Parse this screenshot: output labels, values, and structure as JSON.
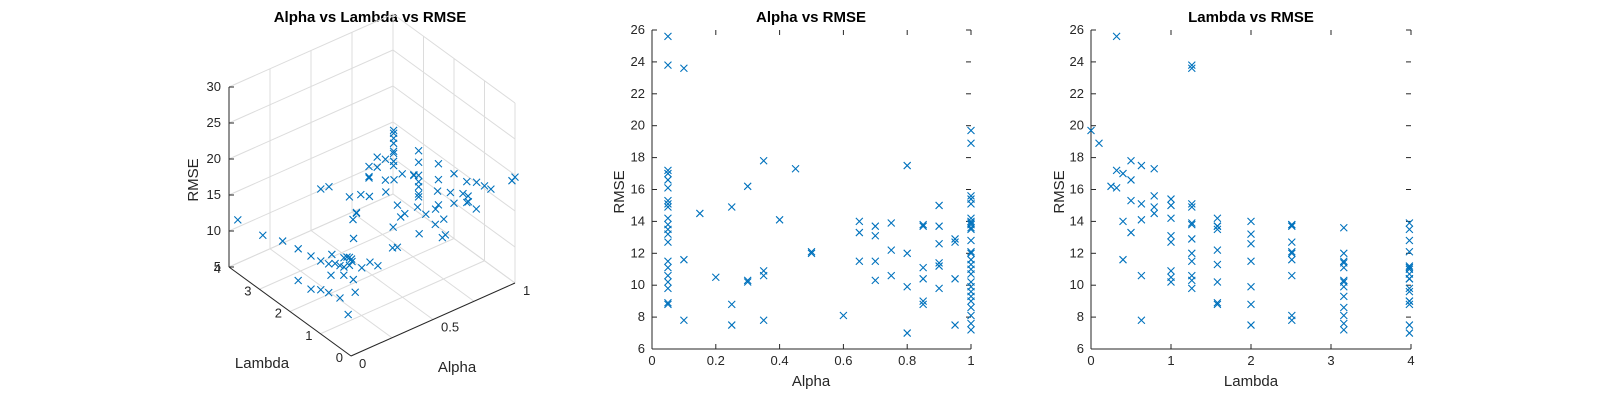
{
  "chart_data": [
    {
      "type": "scatter3d",
      "title": "Alpha vs Lambda vs RMSE",
      "xlabel": "Alpha",
      "ylabel": "Lambda",
      "zlabel": "RMSE",
      "xlim": [
        0,
        1
      ],
      "ylim": [
        0,
        4
      ],
      "zlim": [
        5,
        30
      ],
      "xticks": [
        "0",
        "0.5",
        "1"
      ],
      "yticks": [
        "0",
        "1",
        "2",
        "3",
        "4"
      ],
      "zticks": [
        "5",
        "10",
        "15",
        "20",
        "25",
        "30"
      ],
      "marker": "x",
      "points_ref": "shared_points"
    },
    {
      "type": "scatter",
      "title": "Alpha vs RMSE",
      "xlabel": "Alpha",
      "ylabel": "RMSE",
      "xlim": [
        0,
        1
      ],
      "ylim": [
        6,
        26
      ],
      "xticks": [
        "0",
        "0.2",
        "0.4",
        "0.6",
        "0.8",
        "1"
      ],
      "yticks": [
        "6",
        "8",
        "10",
        "12",
        "14",
        "16",
        "18",
        "20",
        "22",
        "24",
        "26"
      ],
      "marker": "x",
      "points_ref": "shared_points"
    },
    {
      "type": "scatter",
      "title": "Lambda vs RMSE",
      "xlabel": "Lambda",
      "ylabel": "RMSE",
      "xlim": [
        0,
        4
      ],
      "ylim": [
        6,
        26
      ],
      "xticks": [
        "0",
        "1",
        "2",
        "3",
        "4"
      ],
      "yticks": [
        "6",
        "8",
        "10",
        "12",
        "14",
        "16",
        "18",
        "20",
        "22",
        "24",
        "26"
      ],
      "marker": "x",
      "points_ref": "shared_points"
    }
  ],
  "shared_points": {
    "columns": [
      "alpha",
      "lambda",
      "rmse"
    ],
    "rows": [
      [
        0.05,
        0.32,
        25.6
      ],
      [
        0.05,
        1.26,
        23.8
      ],
      [
        0.1,
        1.26,
        23.6
      ],
      [
        0.05,
        0.32,
        17.2
      ],
      [
        0.05,
        0.4,
        17.0
      ],
      [
        0.05,
        0.5,
        16.6
      ],
      [
        0.05,
        0.32,
        16.1
      ],
      [
        0.05,
        0.5,
        15.3
      ],
      [
        0.05,
        0.63,
        15.1
      ],
      [
        0.05,
        0.79,
        14.9
      ],
      [
        0.05,
        1.0,
        14.2
      ],
      [
        0.05,
        1.26,
        13.8
      ],
      [
        0.05,
        1.58,
        13.5
      ],
      [
        0.05,
        2.0,
        13.2
      ],
      [
        0.05,
        2.51,
        12.7
      ],
      [
        0.05,
        3.16,
        11.5
      ],
      [
        0.05,
        3.98,
        11.1
      ],
      [
        0.05,
        0.63,
        10.6
      ],
      [
        0.05,
        1.0,
        10.2
      ],
      [
        0.05,
        1.26,
        9.8
      ],
      [
        0.05,
        1.58,
        8.9
      ],
      [
        0.05,
        2.0,
        8.8
      ],
      [
        0.1,
        0.4,
        11.6
      ],
      [
        0.1,
        0.63,
        7.8
      ],
      [
        0.15,
        0.79,
        14.5
      ],
      [
        0.2,
        1.0,
        10.5
      ],
      [
        0.25,
        1.26,
        14.9
      ],
      [
        0.25,
        1.58,
        8.8
      ],
      [
        0.25,
        2.0,
        7.5
      ],
      [
        0.3,
        0.25,
        16.2
      ],
      [
        0.3,
        1.26,
        10.3
      ],
      [
        0.3,
        1.58,
        10.2
      ],
      [
        0.35,
        0.5,
        17.8
      ],
      [
        0.35,
        1.0,
        10.9
      ],
      [
        0.35,
        1.26,
        10.6
      ],
      [
        0.35,
        2.51,
        7.8
      ],
      [
        0.4,
        0.63,
        14.1
      ],
      [
        0.45,
        0.79,
        17.3
      ],
      [
        0.5,
        2.51,
        12.1
      ],
      [
        0.5,
        2.51,
        12.0
      ],
      [
        0.6,
        3.16,
        8.1
      ],
      [
        0.65,
        0.4,
        14.0
      ],
      [
        0.65,
        0.5,
        13.3
      ],
      [
        0.65,
        1.26,
        11.5
      ],
      [
        0.7,
        1.58,
        13.7
      ],
      [
        0.7,
        1.0,
        13.1
      ],
      [
        0.7,
        2.0,
        11.5
      ],
      [
        0.7,
        3.16,
        10.3
      ],
      [
        0.75,
        1.26,
        13.9
      ],
      [
        0.75,
        1.58,
        12.2
      ],
      [
        0.75,
        2.51,
        10.6
      ],
      [
        0.8,
        0.63,
        17.5
      ],
      [
        0.8,
        1.26,
        12.0
      ],
      [
        0.8,
        3.16,
        9.9
      ],
      [
        0.8,
        3.98,
        7.0
      ],
      [
        0.85,
        2.51,
        13.8
      ],
      [
        0.85,
        2.51,
        13.7
      ],
      [
        0.85,
        3.16,
        11.1
      ],
      [
        0.85,
        3.98,
        10.4
      ],
      [
        0.85,
        3.98,
        9.0
      ],
      [
        0.85,
        3.98,
        8.8
      ],
      [
        0.9,
        1.0,
        15.0
      ],
      [
        0.9,
        1.58,
        13.7
      ],
      [
        0.9,
        2.0,
        12.6
      ],
      [
        0.9,
        3.16,
        11.4
      ],
      [
        0.9,
        3.98,
        11.2
      ],
      [
        0.9,
        3.98,
        9.8
      ],
      [
        0.95,
        1.26,
        12.9
      ],
      [
        0.95,
        1.0,
        12.7
      ],
      [
        0.95,
        3.98,
        10.4
      ],
      [
        0.95,
        3.98,
        7.5
      ],
      [
        1.0,
        0.0,
        19.7
      ],
      [
        1.0,
        0.1,
        18.9
      ],
      [
        1.0,
        0.79,
        15.6
      ],
      [
        1.0,
        1.0,
        15.4
      ],
      [
        1.0,
        1.26,
        15.1
      ],
      [
        1.0,
        1.58,
        14.2
      ],
      [
        1.0,
        2.0,
        14.0
      ],
      [
        1.0,
        2.51,
        13.8
      ],
      [
        1.0,
        3.16,
        13.6
      ],
      [
        1.0,
        3.98,
        13.9
      ],
      [
        1.0,
        3.98,
        13.5
      ],
      [
        1.0,
        3.98,
        12.8
      ],
      [
        1.0,
        3.98,
        12.1
      ],
      [
        1.0,
        3.16,
        12.0
      ],
      [
        1.0,
        2.51,
        11.6
      ],
      [
        1.0,
        1.58,
        11.3
      ],
      [
        1.0,
        3.98,
        11.0
      ],
      [
        1.0,
        3.98,
        10.7
      ],
      [
        1.0,
        3.16,
        10.2
      ],
      [
        1.0,
        2.0,
        9.9
      ],
      [
        1.0,
        3.98,
        9.6
      ],
      [
        1.0,
        3.16,
        9.3
      ],
      [
        1.0,
        3.98,
        9.0
      ],
      [
        1.0,
        3.16,
        8.6
      ],
      [
        1.0,
        2.51,
        8.1
      ],
      [
        1.0,
        3.16,
        7.6
      ],
      [
        1.0,
        3.16,
        7.2
      ]
    ]
  }
}
